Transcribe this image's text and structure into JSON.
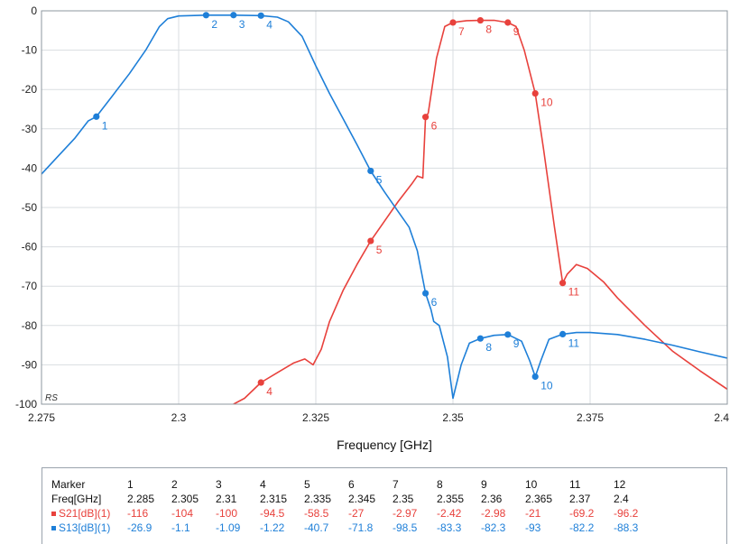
{
  "chart_data": {
    "type": "line",
    "xlabel": "Frequency [GHz]",
    "ylabel": "",
    "xlim": [
      2.275,
      2.4
    ],
    "ylim": [
      -100,
      0
    ],
    "xticks": [
      "2.275",
      "2.3",
      "2.325",
      "2.35",
      "2.375",
      "2.4"
    ],
    "yticks": [
      "0",
      "-10",
      "-20",
      "-30",
      "-40",
      "-50",
      "-60",
      "-70",
      "-80",
      "-90",
      "-100"
    ],
    "corner_label": "RS",
    "grid": true,
    "series": [
      {
        "name": "S21[dB](1)",
        "color": "#e8413c",
        "points": [
          [
            2.31,
            -100
          ],
          [
            2.312,
            -98.5
          ],
          [
            2.315,
            -94.5
          ],
          [
            2.318,
            -92
          ],
          [
            2.321,
            -89.5
          ],
          [
            2.323,
            -88.5
          ],
          [
            2.3245,
            -90
          ],
          [
            2.326,
            -86
          ],
          [
            2.3275,
            -79
          ],
          [
            2.33,
            -71
          ],
          [
            2.3325,
            -64.5
          ],
          [
            2.335,
            -58.5
          ],
          [
            2.3375,
            -53.5
          ],
          [
            2.34,
            -48.5
          ],
          [
            2.3425,
            -44
          ],
          [
            2.3435,
            -42
          ],
          [
            2.3445,
            -42.5
          ],
          [
            2.345,
            -27
          ],
          [
            2.3455,
            -26
          ],
          [
            2.347,
            -12
          ],
          [
            2.3485,
            -4
          ],
          [
            2.35,
            -2.97
          ],
          [
            2.3525,
            -2.5
          ],
          [
            2.355,
            -2.42
          ],
          [
            2.3575,
            -2.4
          ],
          [
            2.36,
            -2.98
          ],
          [
            2.3615,
            -4
          ],
          [
            2.363,
            -10
          ],
          [
            2.365,
            -21
          ],
          [
            2.3665,
            -35
          ],
          [
            2.3685,
            -55
          ],
          [
            2.37,
            -69.2
          ],
          [
            2.3708,
            -67
          ],
          [
            2.3725,
            -64.5
          ],
          [
            2.3745,
            -65.5
          ],
          [
            2.3775,
            -69
          ],
          [
            2.38,
            -73
          ],
          [
            2.385,
            -80
          ],
          [
            2.39,
            -86.5
          ],
          [
            2.395,
            -91.5
          ],
          [
            2.4,
            -96.2
          ]
        ],
        "markers": [
          {
            "id": "4",
            "x": 2.315,
            "y": -94.5
          },
          {
            "id": "5",
            "x": 2.335,
            "y": -58.5
          },
          {
            "id": "6",
            "x": 2.345,
            "y": -27
          },
          {
            "id": "7",
            "x": 2.35,
            "y": -2.97
          },
          {
            "id": "8",
            "x": 2.355,
            "y": -2.42
          },
          {
            "id": "9",
            "x": 2.36,
            "y": -2.98
          },
          {
            "id": "10",
            "x": 2.365,
            "y": -21
          },
          {
            "id": "11",
            "x": 2.37,
            "y": -69.2
          }
        ]
      },
      {
        "name": "S13[dB](1)",
        "color": "#1e7fd8",
        "points": [
          [
            2.275,
            -41.5
          ],
          [
            2.278,
            -37
          ],
          [
            2.281,
            -32.5
          ],
          [
            2.2835,
            -28
          ],
          [
            2.285,
            -26.9
          ],
          [
            2.288,
            -21.5
          ],
          [
            2.291,
            -16
          ],
          [
            2.294,
            -10
          ],
          [
            2.2965,
            -4
          ],
          [
            2.298,
            -2
          ],
          [
            2.3,
            -1.3
          ],
          [
            2.305,
            -1.1
          ],
          [
            2.31,
            -1.09
          ],
          [
            2.315,
            -1.22
          ],
          [
            2.318,
            -1.6
          ],
          [
            2.32,
            -2.8
          ],
          [
            2.3225,
            -6.5
          ],
          [
            2.325,
            -14
          ],
          [
            2.3275,
            -21
          ],
          [
            2.33,
            -27.5
          ],
          [
            2.3325,
            -34
          ],
          [
            2.335,
            -40.7
          ],
          [
            2.3375,
            -46
          ],
          [
            2.34,
            -51
          ],
          [
            2.342,
            -55
          ],
          [
            2.3435,
            -61
          ],
          [
            2.345,
            -71.8
          ],
          [
            2.346,
            -76
          ],
          [
            2.3465,
            -79
          ],
          [
            2.3475,
            -80
          ],
          [
            2.349,
            -88
          ],
          [
            2.35,
            -98.5
          ],
          [
            2.3515,
            -90
          ],
          [
            2.353,
            -84.5
          ],
          [
            2.355,
            -83.3
          ],
          [
            2.3575,
            -82.5
          ],
          [
            2.36,
            -82.3
          ],
          [
            2.3625,
            -84
          ],
          [
            2.364,
            -89
          ],
          [
            2.365,
            -93
          ],
          [
            2.366,
            -89
          ],
          [
            2.3675,
            -83.5
          ],
          [
            2.37,
            -82.2
          ],
          [
            2.3725,
            -81.8
          ],
          [
            2.375,
            -81.8
          ],
          [
            2.38,
            -82.3
          ],
          [
            2.385,
            -83.5
          ],
          [
            2.39,
            -85
          ],
          [
            2.395,
            -86.7
          ],
          [
            2.4,
            -88.3
          ]
        ],
        "markers": [
          {
            "id": "1",
            "x": 2.285,
            "y": -26.9
          },
          {
            "id": "2",
            "x": 2.305,
            "y": -1.1
          },
          {
            "id": "3",
            "x": 2.31,
            "y": -1.09
          },
          {
            "id": "4",
            "x": 2.315,
            "y": -1.22
          },
          {
            "id": "5",
            "x": 2.335,
            "y": -40.7
          },
          {
            "id": "6",
            "x": 2.345,
            "y": -71.8
          },
          {
            "id": "8",
            "x": 2.355,
            "y": -83.3
          },
          {
            "id": "9",
            "x": 2.36,
            "y": -82.3
          },
          {
            "id": "10",
            "x": 2.365,
            "y": -93
          },
          {
            "id": "11",
            "x": 2.37,
            "y": -82.2
          }
        ]
      }
    ]
  },
  "marker_table": {
    "header_label": "Marker",
    "markers": [
      "1",
      "2",
      "3",
      "4",
      "5",
      "6",
      "7",
      "8",
      "9",
      "10",
      "11",
      "12"
    ],
    "freq_label": "Freq[GHz]",
    "freqs": [
      "2.285",
      "2.305",
      "2.31",
      "2.315",
      "2.335",
      "2.345",
      "2.35",
      "2.355",
      "2.36",
      "2.365",
      "2.37",
      "2.4"
    ],
    "rows": [
      {
        "label": "S21[dB](1)",
        "color": "#e8413c",
        "values": [
          "-116",
          "-104",
          "-100",
          "-94.5",
          "-58.5",
          "-27",
          "-2.97",
          "-2.42",
          "-2.98",
          "-21",
          "-69.2",
          "-96.2"
        ]
      },
      {
        "label": "S13[dB](1)",
        "color": "#1e7fd8",
        "values": [
          "-26.9",
          "-1.1",
          "-1.09",
          "-1.22",
          "-40.7",
          "-71.8",
          "-98.5",
          "-83.3",
          "-82.3",
          "-93",
          "-82.2",
          "-88.3"
        ]
      }
    ]
  }
}
